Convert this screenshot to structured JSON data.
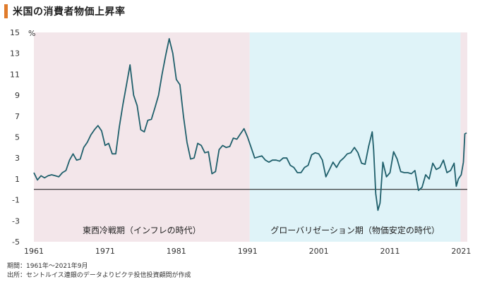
{
  "title": "米国の消費者物価上昇率",
  "footer": {
    "period": "期間：1961年～2021年9月",
    "source": "出所：セントルイス連銀のデータよりピクテ投信投資顧問が作成"
  },
  "chart_data": {
    "type": "line",
    "ylabel_unit": "%",
    "ylim": [
      -5,
      15
    ],
    "xlim": [
      1961,
      2021.85
    ],
    "yticks": [
      "15",
      "13",
      "11",
      "9",
      "7",
      "5",
      "3",
      "1",
      "-1",
      "-3",
      "-5"
    ],
    "xticks": [
      "1961",
      "1971",
      "1981",
      "1991",
      "2001",
      "2011",
      "2021"
    ],
    "grid": false,
    "zero_line": true,
    "regions": [
      {
        "label": "東西冷戦期（インフレの時代）",
        "from": 1961,
        "to": 1991.3,
        "color": "#f3e6ea"
      },
      {
        "label": "グローバリゼーション期（物価安定の時代）",
        "from": 1991.3,
        "to": 2020.9,
        "color": "#dff3f8"
      },
      {
        "label": "",
        "from": 2020.9,
        "to": 2021.85,
        "color": "#f3e6ea"
      }
    ],
    "series": [
      {
        "color": "#1f5f6b",
        "x": [
          1961.0,
          1961.5,
          1962.0,
          1962.5,
          1963.0,
          1963.5,
          1964.0,
          1964.5,
          1965.0,
          1965.5,
          1966.0,
          1966.5,
          1967.0,
          1967.5,
          1968.0,
          1968.5,
          1969.0,
          1969.5,
          1970.0,
          1970.5,
          1971.0,
          1971.5,
          1972.0,
          1972.5,
          1973.0,
          1973.5,
          1974.0,
          1974.5,
          1975.0,
          1975.5,
          1976.0,
          1976.5,
          1977.0,
          1977.5,
          1978.0,
          1978.5,
          1979.0,
          1979.5,
          1980.0,
          1980.5,
          1981.0,
          1981.5,
          1982.0,
          1982.5,
          1983.0,
          1983.5,
          1984.0,
          1984.5,
          1985.0,
          1985.5,
          1986.0,
          1986.5,
          1987.0,
          1987.5,
          1988.0,
          1988.5,
          1989.0,
          1989.5,
          1990.0,
          1990.5,
          1991.0,
          1991.5,
          1992.0,
          1992.5,
          1993.0,
          1993.5,
          1994.0,
          1994.5,
          1995.0,
          1995.5,
          1996.0,
          1996.5,
          1997.0,
          1997.5,
          1998.0,
          1998.5,
          1999.0,
          1999.5,
          2000.0,
          2000.5,
          2001.0,
          2001.5,
          2002.0,
          2002.5,
          2003.0,
          2003.5,
          2004.0,
          2004.5,
          2005.0,
          2005.5,
          2006.0,
          2006.5,
          2007.0,
          2007.5,
          2008.0,
          2008.5,
          2008.7,
          2009.0,
          2009.3,
          2009.6,
          2010.0,
          2010.5,
          2011.0,
          2011.5,
          2012.0,
          2012.5,
          2013.0,
          2013.5,
          2014.0,
          2014.5,
          2015.0,
          2015.5,
          2016.0,
          2016.5,
          2017.0,
          2017.5,
          2018.0,
          2018.5,
          2019.0,
          2019.5,
          2020.0,
          2020.3,
          2020.6,
          2021.0,
          2021.3,
          2021.5,
          2021.75
        ],
        "y": [
          1.6,
          0.9,
          1.3,
          1.1,
          1.3,
          1.4,
          1.3,
          1.2,
          1.6,
          1.8,
          2.8,
          3.4,
          2.8,
          2.9,
          4.0,
          4.5,
          5.2,
          5.7,
          6.1,
          5.6,
          4.2,
          4.4,
          3.4,
          3.4,
          6.0,
          8.1,
          10.0,
          11.9,
          9.0,
          8.0,
          5.7,
          5.5,
          6.6,
          6.7,
          7.8,
          9.0,
          11.0,
          12.8,
          14.4,
          13.0,
          10.5,
          10.0,
          7.0,
          4.5,
          2.9,
          3.0,
          4.4,
          4.2,
          3.5,
          3.6,
          1.5,
          1.7,
          3.8,
          4.2,
          4.0,
          4.1,
          4.9,
          4.8,
          5.3,
          5.8,
          5.0,
          4.0,
          3.0,
          3.1,
          3.2,
          2.8,
          2.6,
          2.8,
          2.8,
          2.7,
          3.0,
          3.0,
          2.3,
          2.1,
          1.6,
          1.6,
          2.1,
          2.3,
          3.3,
          3.5,
          3.4,
          2.8,
          1.2,
          1.9,
          2.6,
          2.1,
          2.7,
          3.0,
          3.4,
          3.5,
          4.0,
          3.5,
          2.5,
          2.4,
          4.1,
          5.5,
          3.8,
          -0.4,
          -2.0,
          -1.3,
          2.6,
          1.2,
          1.6,
          3.6,
          2.9,
          1.7,
          1.6,
          1.6,
          1.5,
          1.8,
          -0.1,
          0.2,
          1.4,
          1.0,
          2.5,
          1.9,
          2.1,
          2.8,
          1.6,
          1.8,
          2.5,
          0.3,
          1.0,
          1.4,
          2.6,
          5.3,
          5.4
        ]
      }
    ]
  }
}
